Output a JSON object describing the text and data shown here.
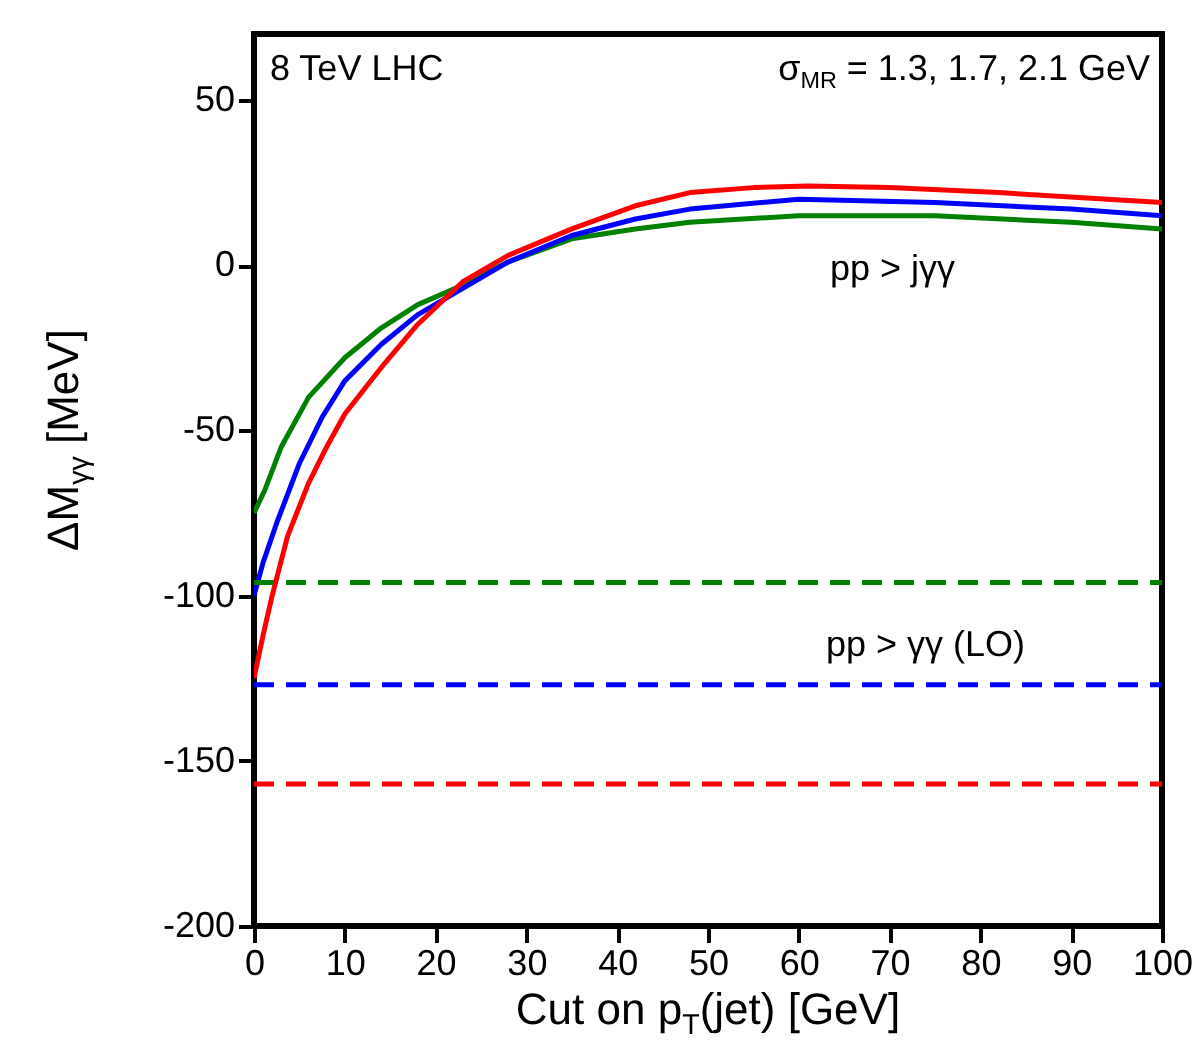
{
  "chart_data": {
    "type": "line",
    "xlabel": "Cut on p$_{T}$(jet)  [GeV]",
    "ylabel": "ΔM$_{γγ}$  [MeV]",
    "xlim": [
      0,
      100
    ],
    "xticks": [
      0,
      10,
      20,
      30,
      40,
      50,
      60,
      70,
      80,
      90,
      100
    ],
    "ylim": [
      -200,
      70
    ],
    "yticks": [
      -200,
      -150,
      -100,
      -50,
      0,
      50
    ],
    "grid": false,
    "series": [
      {
        "color": "#008000",
        "x": [
          0,
          1.2,
          3,
          6,
          10,
          14,
          18,
          23,
          28,
          35,
          42,
          48,
          60,
          75,
          90,
          100
        ],
        "values": [
          -75,
          -68,
          -55,
          -40,
          -28,
          -19,
          -12,
          -6,
          1,
          8,
          11,
          13,
          15,
          15,
          13,
          11
        ]
      },
      {
        "color": "#0000ff",
        "x": [
          0,
          1,
          2.5,
          5,
          7.5,
          10,
          14,
          18,
          23,
          28,
          35,
          42,
          48,
          60,
          75,
          90,
          100
        ],
        "values": [
          -100,
          -90,
          -78,
          -60,
          -46,
          -35,
          -24,
          -15,
          -7,
          1,
          9,
          14,
          17,
          20,
          19,
          17,
          15
        ]
      },
      {
        "color": "#ff0000",
        "x": [
          0,
          1,
          2,
          3.7,
          6,
          8,
          10,
          14,
          18,
          23,
          28,
          35,
          42,
          48,
          55,
          61,
          70,
          82,
          100
        ],
        "values": [
          -125,
          -112,
          -100,
          -82,
          -66,
          -55,
          -45,
          -31,
          -18,
          -5,
          3,
          11,
          18,
          22,
          23.5,
          24,
          23.5,
          22,
          19
        ]
      },
      {
        "color": "#008000",
        "line_style": "dashed",
        "x": [
          0,
          100
        ],
        "values": [
          -96,
          -96
        ]
      },
      {
        "color": "#0000ff",
        "line_style": "dashed",
        "x": [
          0,
          100
        ],
        "values": [
          -127,
          -127
        ]
      },
      {
        "color": "#ff0000",
        "line_style": "dashed",
        "x": [
          0,
          100
        ],
        "values": [
          -157,
          -157
        ]
      }
    ],
    "annotations": [
      "8 TeV LHC",
      "σ$_{MR}$ = 1.3, 1.7, 2.1 GeV",
      "pp > jγγ",
      "pp > γγ  (LO)"
    ]
  }
}
